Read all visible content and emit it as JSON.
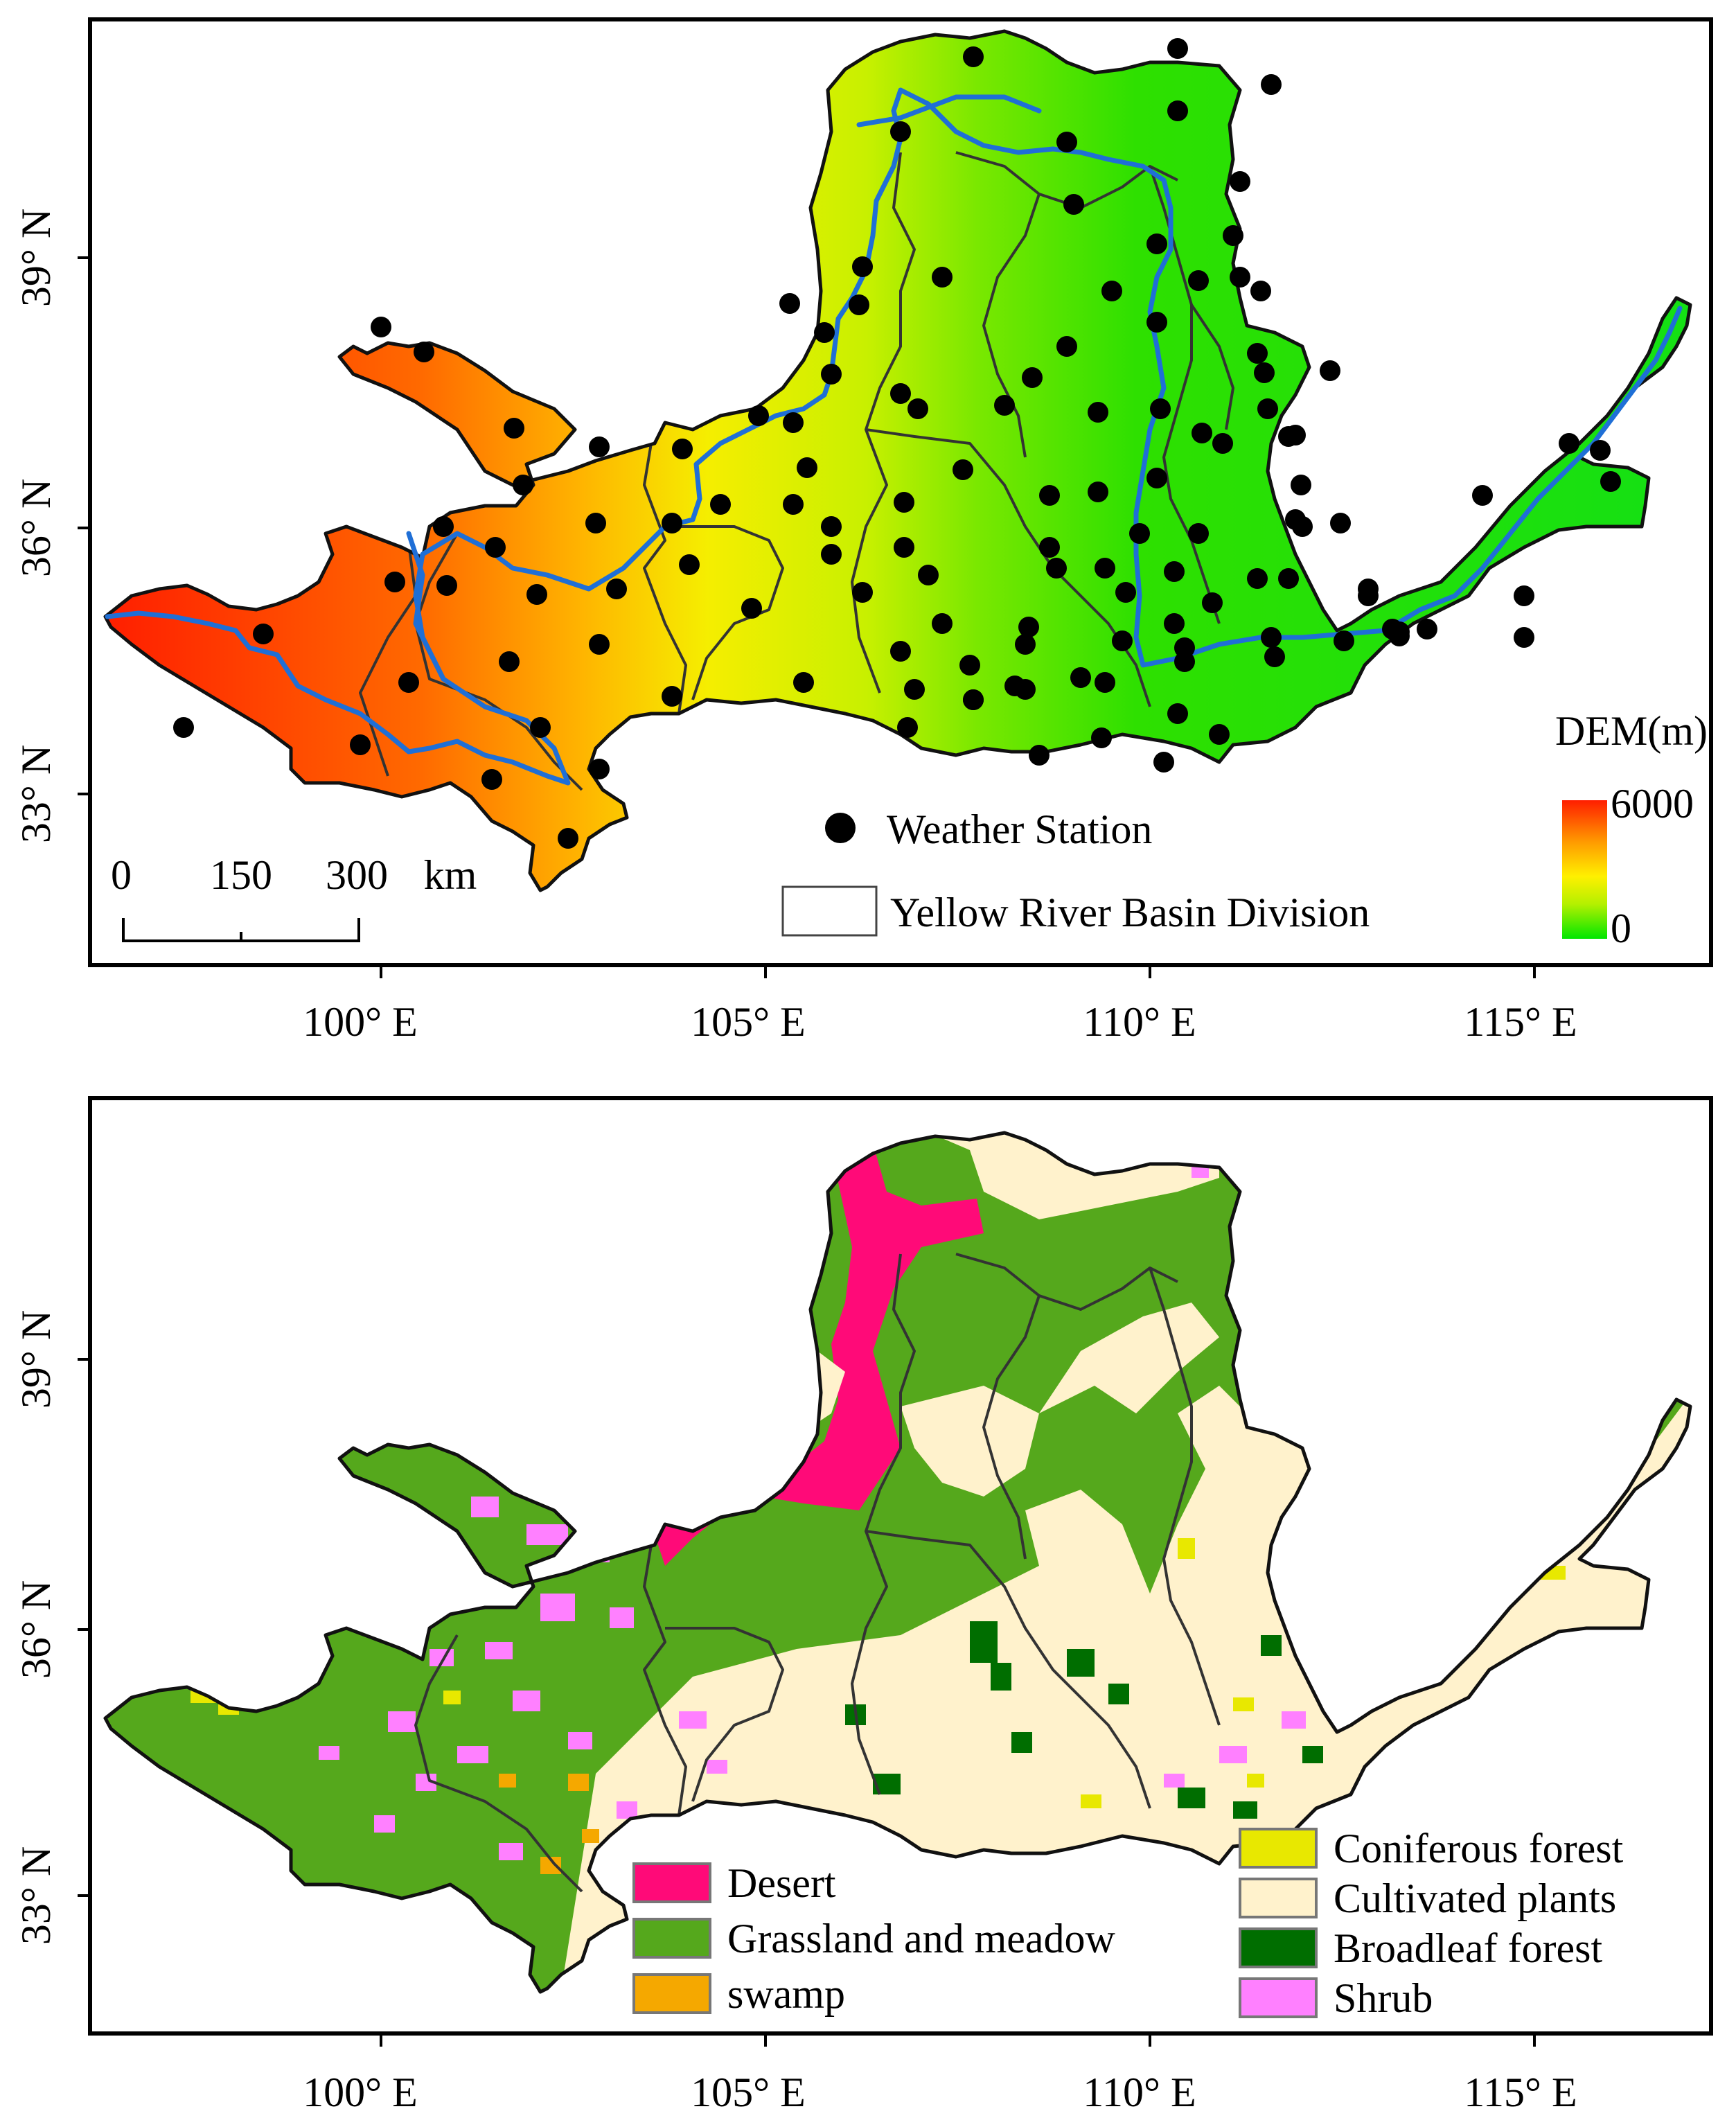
{
  "top_map": {
    "lat_labels": [
      "39° N",
      "36° N",
      "33° N"
    ],
    "lon_labels": [
      "100° E",
      "105° E",
      "110° E",
      "115° E"
    ],
    "scale_bar": {
      "labels": [
        "0",
        "150",
        "300"
      ],
      "unit": "km"
    },
    "dem_legend": {
      "title": "DEM(m)",
      "max_label": "6000",
      "min_label": "0",
      "colors": [
        "#ff2a00",
        "#ff8c00",
        "#ffe100",
        "#b4f000",
        "#00e100"
      ]
    },
    "legend": {
      "station_label": "Weather Station",
      "division_label": "Yellow River  Basin Division"
    },
    "colors": {
      "river": "#1f6fd6",
      "station": "#000000"
    }
  },
  "bottom_map": {
    "lat_labels": [
      "39° N",
      "36° N",
      "33° N"
    ],
    "lon_labels": [
      "100° E",
      "105° E",
      "110° E",
      "115° E"
    ],
    "legend_left": [
      {
        "label": "Desert",
        "color": "#ff0a78"
      },
      {
        "label": "Grassland and meadow",
        "color": "#55a81c"
      },
      {
        "label": "swamp",
        "color": "#f5a800"
      }
    ],
    "legend_right": [
      {
        "label": "Coniferous forest",
        "color": "#e8e800"
      },
      {
        "label": "Cultivated plants",
        "color": "#fff2cc"
      },
      {
        "label": "Broadleaf forest",
        "color": "#006e00"
      },
      {
        "label": "Shrub",
        "color": "#ff80ff"
      }
    ]
  }
}
